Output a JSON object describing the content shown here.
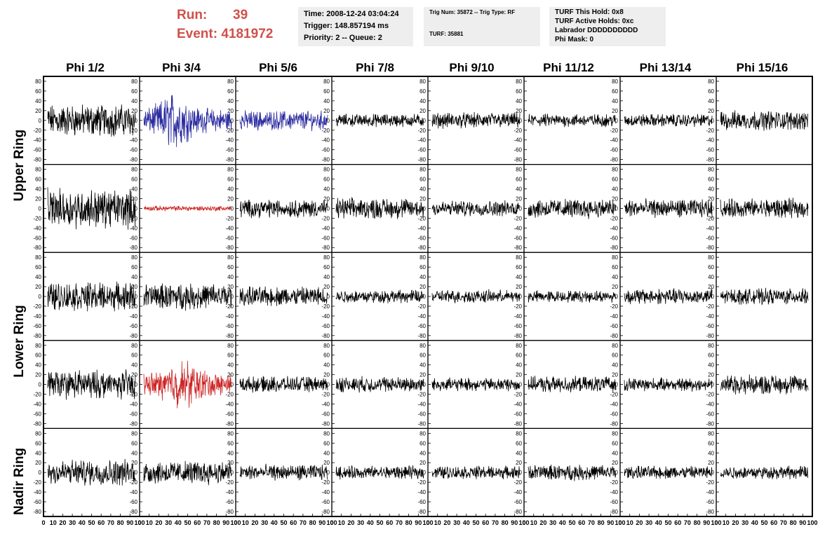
{
  "run_label": "Run:",
  "run_value": "39",
  "event_label": "Event:",
  "event_value": "4181972",
  "info_time": "Time: 2008-12-24 03:04:24",
  "info_trigger": "Trigger: 148.857194 ms",
  "info_priority": "Priority: 2 -- Queue: 2",
  "trig_num": "Trig Num: 35872 -- Trig Type: RF",
  "turf": "TURF: 35881",
  "turf_hold": "TURF This Hold: 0x8",
  "turf_active": "TURF Active Holds: 0xc",
  "labrador": "Labrador DDDDDDDDDD",
  "phi_mask": "Phi Mask: 0",
  "phi_headers": [
    "Phi 1/2",
    "Phi 3/4",
    "Phi 5/6",
    "Phi 7/8",
    "Phi 9/10",
    "Phi 11/12",
    "Phi 13/14",
    "Phi 15/16"
  ],
  "ring_labels": [
    "Upper Ring",
    "Lower Ring",
    "Nadir Ring"
  ],
  "colors": {
    "black": "#000000",
    "blue": "#2a2aa0",
    "red": "#cc2222",
    "accent": "#d0504a"
  },
  "chart_data": {
    "type": "line",
    "ylim": [
      -90,
      90
    ],
    "xlim": [
      0,
      100
    ],
    "y_ticks": [
      80,
      60,
      40,
      20,
      0,
      -20,
      -40,
      -60,
      -80
    ],
    "y_tick_labels": [
      "80",
      "60",
      "40",
      "20",
      "0",
      "-20",
      "-40",
      "-60",
      "-80"
    ],
    "x_tick_labels": [
      "0",
      "10",
      "20",
      "30",
      "40",
      "50",
      "60",
      "70",
      "80",
      "90",
      "100"
    ],
    "rows": 5,
    "cols": 8,
    "amplitudes": [
      [
        25,
        30,
        15,
        10,
        12,
        10,
        10,
        15
      ],
      [
        30,
        4,
        14,
        16,
        12,
        15,
        14,
        15
      ],
      [
        22,
        20,
        15,
        10,
        10,
        9,
        12,
        12
      ],
      [
        22,
        25,
        12,
        12,
        10,
        12,
        10,
        15
      ],
      [
        20,
        18,
        12,
        10,
        10,
        12,
        10,
        10
      ]
    ],
    "trace_colors": [
      [
        "black",
        "blue",
        "blue",
        "black",
        "black",
        "black",
        "black",
        "black"
      ],
      [
        "black",
        "red",
        "black",
        "black",
        "black",
        "black",
        "black",
        "black"
      ],
      [
        "black",
        "black",
        "black",
        "black",
        "black",
        "black",
        "black",
        "black"
      ],
      [
        "black",
        "red",
        "black",
        "black",
        "black",
        "black",
        "black",
        "black"
      ],
      [
        "black",
        "black",
        "black",
        "black",
        "black",
        "black",
        "black",
        "black"
      ]
    ]
  }
}
